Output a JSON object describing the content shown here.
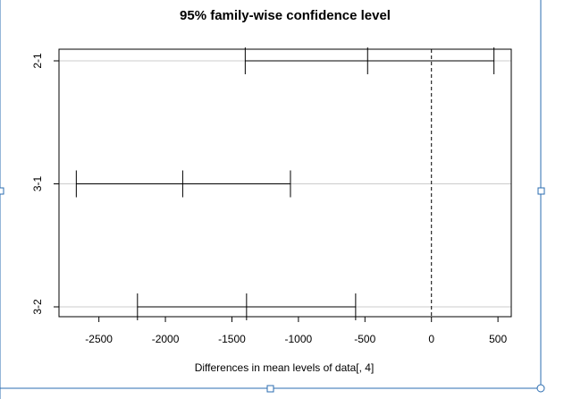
{
  "chart_data": {
    "type": "errorbar",
    "title": "95% family-wise confidence level",
    "xlabel": "Differences in mean levels of data[, 4]",
    "ylabel": "",
    "xlim": [
      -2800,
      600
    ],
    "xticks": [
      -2500,
      -2000,
      -1500,
      -1000,
      -500,
      0,
      500
    ],
    "reference_line_x": 0,
    "grid": "horizontal",
    "comparisons": [
      {
        "label": "2-1",
        "lwr": -1400,
        "diff": -480,
        "upr": 470
      },
      {
        "label": "3-1",
        "lwr": -2670,
        "diff": -1870,
        "upr": -1060
      },
      {
        "label": "3-2",
        "lwr": -2210,
        "diff": -1390,
        "upr": -570
      }
    ]
  }
}
